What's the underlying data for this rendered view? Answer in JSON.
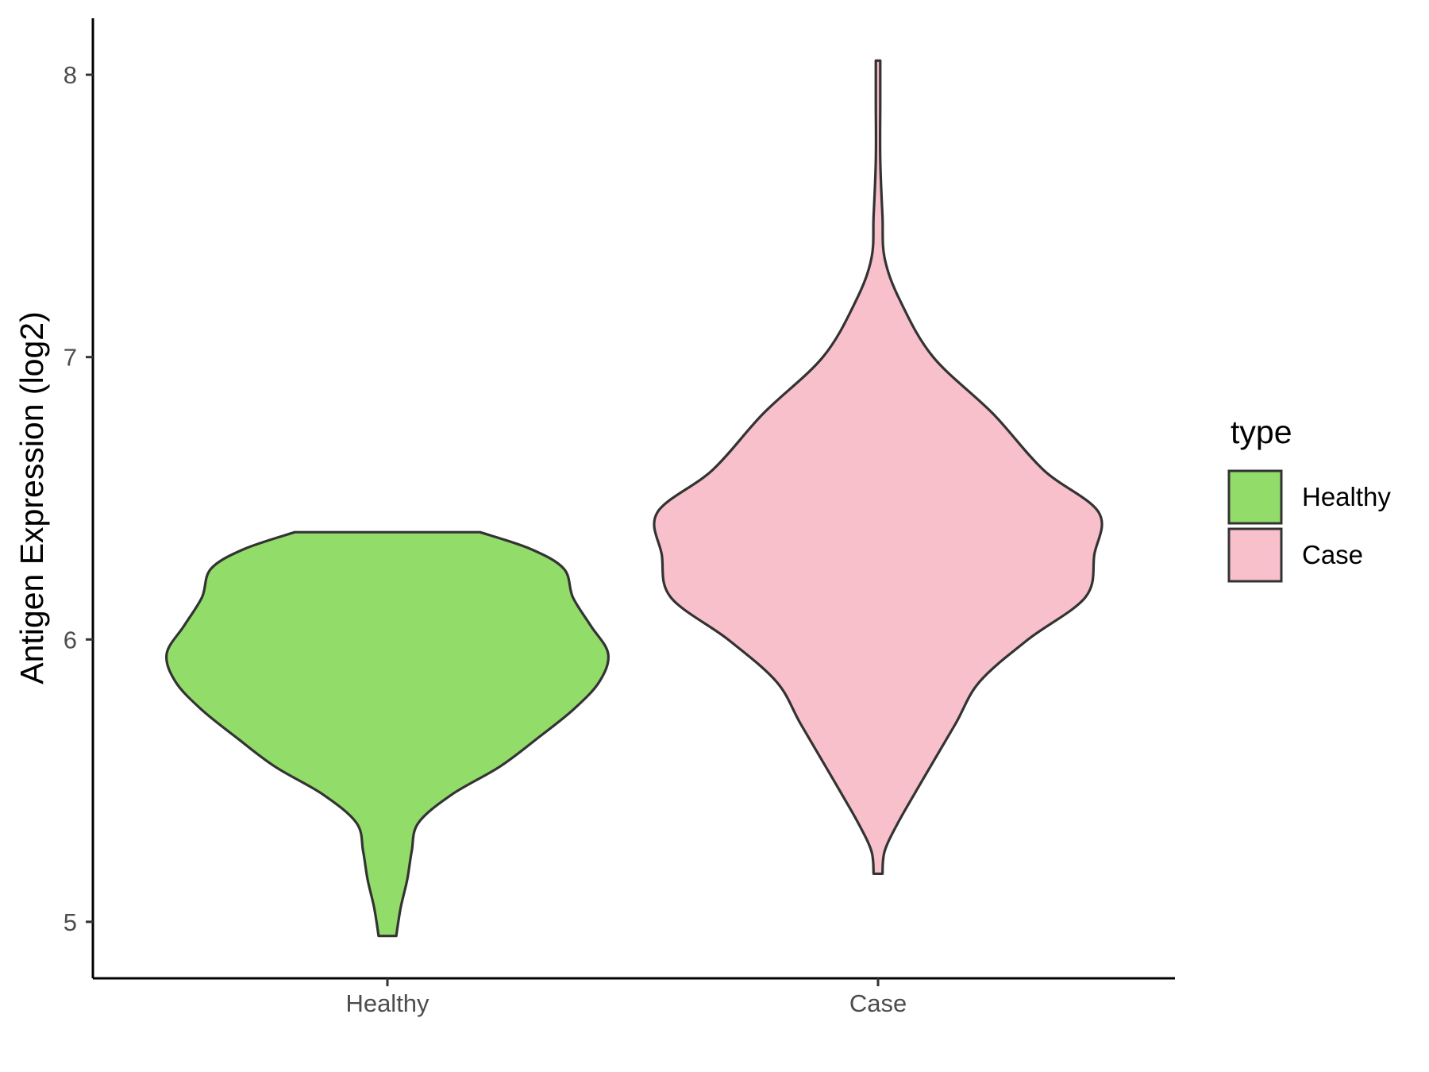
{
  "chart_data": {
    "type": "violin",
    "categories": [
      "Healthy",
      "Case"
    ],
    "ylabel": "Antigen Expression (log2)",
    "xlabel": "",
    "ylim": [
      4.8,
      8.2
    ],
    "yticks": [
      5,
      6,
      7,
      8
    ],
    "grid": false,
    "legend": {
      "title": "type",
      "placement": "right",
      "entries": [
        {
          "label": "Healthy",
          "color": "#92dc6a"
        },
        {
          "label": "Case",
          "color": "#f7c0cb"
        }
      ]
    },
    "series": [
      {
        "category": "Healthy",
        "color": "#92dc6a",
        "min": 4.95,
        "max": 6.38,
        "density_profile": [
          [
            4.95,
            0.04
          ],
          [
            5.05,
            0.06
          ],
          [
            5.15,
            0.09
          ],
          [
            5.25,
            0.11
          ],
          [
            5.35,
            0.14
          ],
          [
            5.45,
            0.29
          ],
          [
            5.55,
            0.51
          ],
          [
            5.65,
            0.68
          ],
          [
            5.75,
            0.84
          ],
          [
            5.85,
            0.96
          ],
          [
            5.95,
            1.0
          ],
          [
            6.05,
            0.92
          ],
          [
            6.15,
            0.84
          ],
          [
            6.25,
            0.8
          ],
          [
            6.32,
            0.65
          ],
          [
            6.38,
            0.42
          ]
        ]
      },
      {
        "category": "Case",
        "color": "#f7c0cb",
        "min": 5.17,
        "max": 8.05,
        "density_profile": [
          [
            5.17,
            0.02
          ],
          [
            5.25,
            0.03
          ],
          [
            5.35,
            0.09
          ],
          [
            5.5,
            0.2
          ],
          [
            5.7,
            0.35
          ],
          [
            5.85,
            0.46
          ],
          [
            6.0,
            0.68
          ],
          [
            6.15,
            0.94
          ],
          [
            6.3,
            0.98
          ],
          [
            6.45,
            1.0
          ],
          [
            6.6,
            0.75
          ],
          [
            6.8,
            0.52
          ],
          [
            7.0,
            0.25
          ],
          [
            7.2,
            0.1
          ],
          [
            7.35,
            0.03
          ],
          [
            7.5,
            0.02
          ],
          [
            7.7,
            0.01
          ],
          [
            7.9,
            0.01
          ],
          [
            8.05,
            0.01
          ]
        ]
      }
    ]
  }
}
